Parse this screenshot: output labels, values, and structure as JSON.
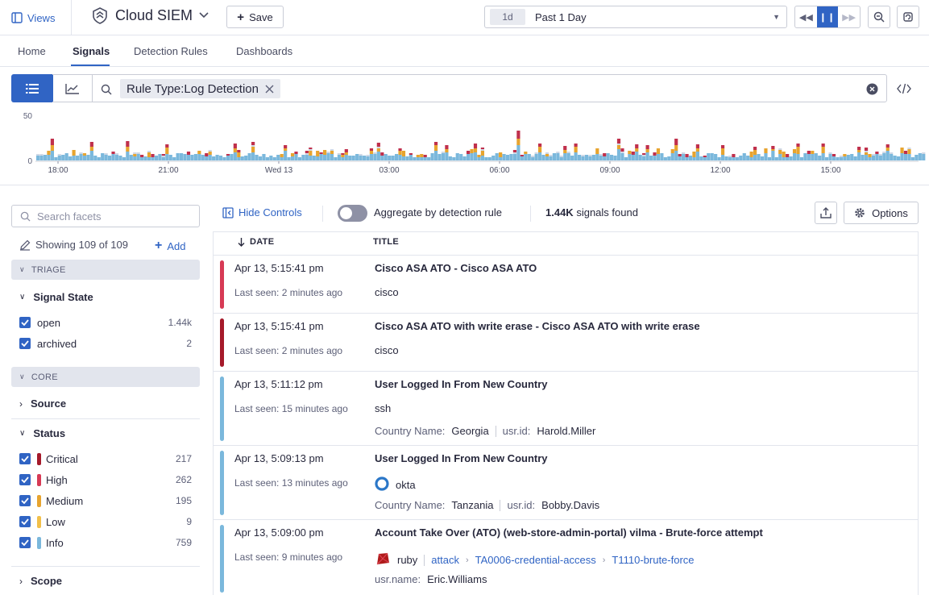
{
  "topbar": {
    "views_label": "Views",
    "app_title": "Cloud SIEM",
    "save_label": "Save",
    "time_badge": "1d",
    "time_label": "Past 1 Day"
  },
  "tabs": [
    {
      "label": "Home"
    },
    {
      "label": "Signals"
    },
    {
      "label": "Detection Rules"
    },
    {
      "label": "Dashboards"
    }
  ],
  "query": {
    "chip": "Rule Type:Log Detection"
  },
  "histogram": {
    "y_max_label": "50",
    "y_min_label": "0",
    "x_labels": [
      "18:00",
      "21:00",
      "Wed 13",
      "03:00",
      "06:00",
      "09:00",
      "12:00",
      "15:00"
    ],
    "colors": {
      "info": "#7bb8dc",
      "low": "#e7a42f",
      "medium": "#cfd8e6",
      "high": "#c0304c",
      "critical": "#a5192a"
    }
  },
  "facets": {
    "search_placeholder": "Search facets",
    "showing": "Showing 109 of 109",
    "add_label": "Add",
    "sections": {
      "triage": "TRIAGE",
      "core": "CORE"
    },
    "signal_state": {
      "title": "Signal State",
      "items": [
        {
          "label": "open",
          "count": "1.44k"
        },
        {
          "label": "archived",
          "count": "2"
        }
      ]
    },
    "source": {
      "title": "Source"
    },
    "status": {
      "title": "Status",
      "items": [
        {
          "label": "Critical",
          "count": "217",
          "color": "#a5192a"
        },
        {
          "label": "High",
          "count": "262",
          "color": "#d73a55"
        },
        {
          "label": "Medium",
          "count": "195",
          "color": "#e7a42f"
        },
        {
          "label": "Low",
          "count": "9",
          "color": "#f2c04a"
        },
        {
          "label": "Info",
          "count": "759",
          "color": "#7bb8dc"
        }
      ]
    },
    "scope": {
      "title": "Scope"
    }
  },
  "controls": {
    "hide_label": "Hide Controls",
    "aggregate_label": "Aggregate by detection rule",
    "found_count": "1.44K",
    "found_suffix": "signals found",
    "options_label": "Options"
  },
  "table": {
    "col_date": "DATE",
    "col_title": "TITLE",
    "rows": [
      {
        "date": "Apr 13, 5:15:41 pm",
        "seen": "Last seen: 2 minutes ago",
        "title": "Cisco ASA ATO - Cisco ASA ATO",
        "source": "cisco",
        "color": "#d73a55"
      },
      {
        "date": "Apr 13, 5:15:41 pm",
        "seen": "Last seen: 2 minutes ago",
        "title": "Cisco ASA ATO with write erase - Cisco ASA ATO with write erase",
        "source": "cisco",
        "color": "#a5192a"
      },
      {
        "date": "Apr 13, 5:11:12 pm",
        "seen": "Last seen: 15 minutes ago",
        "title": "User Logged In From New Country",
        "source": "ssh",
        "color": "#7bb8dc",
        "attrs": [
          {
            "k": "Country Name:",
            "v": "Georgia"
          },
          {
            "k": "usr.id:",
            "v": "Harold.Miller"
          }
        ]
      },
      {
        "date": "Apr 13, 5:09:13 pm",
        "seen": "Last seen: 13 minutes ago",
        "title": "User Logged In From New Country",
        "source": "okta",
        "color": "#7bb8dc",
        "attrs": [
          {
            "k": "Country Name:",
            "v": "Tanzania"
          },
          {
            "k": "usr.id:",
            "v": "Bobby.Davis"
          }
        ]
      },
      {
        "date": "Apr 13, 5:09:00 pm",
        "seen": "Last seen: 9 minutes ago",
        "title": "Account Take Over (ATO) (web-store-admin-portal) vilma - Brute-force attempt",
        "source": "ruby",
        "color": "#7bb8dc",
        "tags": [
          "attack",
          "TA0006-credential-access",
          "T1110-brute-force"
        ],
        "attrs": [
          {
            "k": "usr.name:",
            "v": "Eric.Williams"
          }
        ]
      }
    ]
  }
}
